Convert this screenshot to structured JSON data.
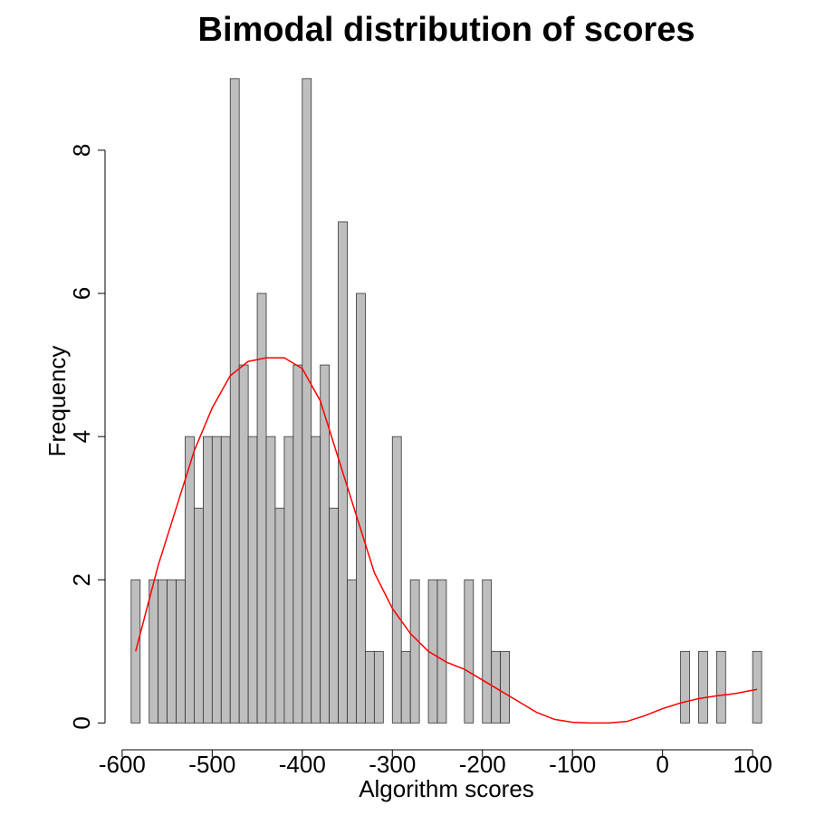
{
  "chart_data": {
    "type": "histogram",
    "title": "Bimodal distribution of scores",
    "x_label": "Algorithm scores",
    "y_label": "Frequency",
    "bins": [
      -590,
      -580,
      -570,
      -560,
      -550,
      -540,
      -530,
      -520,
      -510,
      -500,
      -490,
      -480,
      -470,
      -460,
      -450,
      -440,
      -430,
      -420,
      -410,
      -400,
      -390,
      -380,
      -370,
      -360,
      -350,
      -340,
      -330,
      -320,
      -310,
      -300,
      -290,
      -280,
      -270,
      -260,
      -250,
      -240,
      -230,
      -220,
      -210,
      -200,
      -190,
      -180,
      -170,
      -160,
      -150,
      -140,
      -130,
      -120,
      -110,
      -100,
      -90,
      -80,
      -70,
      -60,
      -50,
      -40,
      -30,
      -20,
      -10,
      0,
      10,
      20,
      30,
      40,
      50,
      60,
      70,
      80,
      90,
      100,
      110
    ],
    "counts": [
      2,
      0,
      2,
      2,
      2,
      2,
      4,
      3,
      4,
      4,
      4,
      9,
      5,
      4,
      6,
      4,
      3,
      4,
      5,
      9,
      4,
      5,
      3,
      7,
      2,
      6,
      1,
      1,
      0,
      4,
      1,
      2,
      0,
      2,
      2,
      0,
      0,
      2,
      0,
      2,
      1,
      1,
      0,
      0,
      0,
      0,
      0,
      0,
      0,
      0,
      0,
      0,
      0,
      0,
      0,
      0,
      0,
      0,
      0,
      0,
      0,
      1,
      0,
      1,
      0,
      1,
      0,
      0,
      0,
      1
    ],
    "color": "#bebebe",
    "curve": {
      "color": "#ff0000",
      "x": [
        -585,
        -560,
        -540,
        -520,
        -500,
        -480,
        -460,
        -440,
        -420,
        -400,
        -380,
        -360,
        -340,
        -320,
        -300,
        -280,
        -260,
        -240,
        -220,
        -200,
        -180,
        -160,
        -140,
        -120,
        -100,
        -80,
        -60,
        -40,
        -20,
        0,
        20,
        40,
        60,
        80,
        105
      ],
      "y": [
        1.0,
        2.2,
        3.0,
        3.8,
        4.4,
        4.85,
        5.05,
        5.1,
        5.1,
        4.95,
        4.5,
        3.7,
        2.9,
        2.1,
        1.6,
        1.25,
        1.0,
        0.85,
        0.75,
        0.6,
        0.45,
        0.3,
        0.15,
        0.05,
        0.01,
        0,
        0,
        0.02,
        0.1,
        0.2,
        0.28,
        0.34,
        0.38,
        0.41,
        0.47
      ]
    },
    "xlim": [
      -625,
      125
    ],
    "ylim": [
      -0.4,
      9.2
    ],
    "xticks": [
      -600,
      -500,
      -400,
      -300,
      -200,
      -100,
      0,
      100
    ],
    "yticks": [
      0,
      2,
      4,
      6,
      8
    ]
  }
}
